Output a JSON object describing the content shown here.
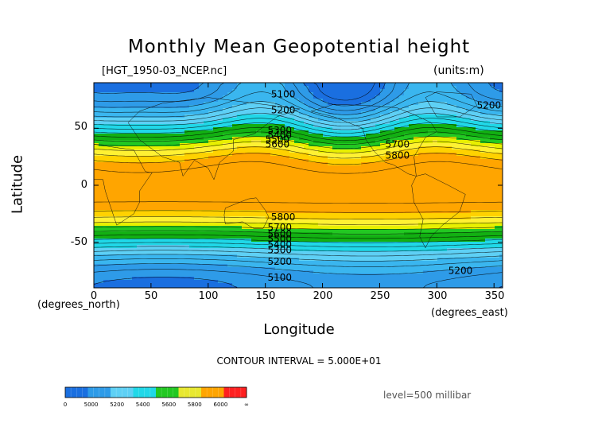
{
  "header": {
    "title": "Monthly Mean Geopotential height",
    "file_label": "[HGT_1950-03_NCEP.nc]",
    "units_label": "(units:m)"
  },
  "axes": {
    "xlabel": "Longitude",
    "ylabel": "Latitude",
    "x_units_left": "(degrees_north)",
    "x_units_right": "(degrees_east)",
    "x_ticks": [
      "0",
      "50",
      "100",
      "150",
      "200",
      "250",
      "300",
      "350"
    ],
    "y_ticks": [
      "50",
      "0",
      "-50"
    ]
  },
  "footer": {
    "contour_interval": "CONTOUR INTERVAL = 5.000E+01",
    "level": "level=500 millibar"
  },
  "colorbar": {
    "labels": [
      "0",
      "5000",
      "5200",
      "5400",
      "5600",
      "5800",
      "6000",
      "∞"
    ],
    "colors": [
      "#1a6fe0",
      "#2e9be8",
      "#5ed0f5",
      "#20d8e8",
      "#22c822",
      "#e8e830",
      "#ffa500",
      "#ff2020"
    ]
  },
  "chart_data": {
    "type": "heatmap",
    "title": "Monthly Mean Geopotential height",
    "xlabel": "Longitude",
    "ylabel": "Latitude",
    "xlim": [
      0,
      357.5
    ],
    "ylim": [
      -90,
      90
    ],
    "variable": "HGT",
    "level": "500 millibar",
    "units": "m",
    "contour_interval": 50,
    "colorbar_levels": [
      0,
      5000,
      5200,
      5400,
      5600,
      5800,
      6000
    ],
    "contour_labels": [
      {
        "value": 5100,
        "lon": 155,
        "lat": 80
      },
      {
        "value": 5200,
        "lon": 155,
        "lat": 66
      },
      {
        "value": 5200,
        "lon": 335,
        "lat": 70
      },
      {
        "value": 5300,
        "lon": 152,
        "lat": 48
      },
      {
        "value": 5400,
        "lon": 152,
        "lat": 44
      },
      {
        "value": 5500,
        "lon": 150,
        "lat": 40
      },
      {
        "value": 5600,
        "lon": 150,
        "lat": 36
      },
      {
        "value": 5700,
        "lon": 255,
        "lat": 36
      },
      {
        "value": 5800,
        "lon": 255,
        "lat": 26
      },
      {
        "value": 5800,
        "lon": 155,
        "lat": -28
      },
      {
        "value": 5700,
        "lon": 152,
        "lat": -37
      },
      {
        "value": 5600,
        "lon": 152,
        "lat": -43
      },
      {
        "value": 5500,
        "lon": 152,
        "lat": -47
      },
      {
        "value": 5400,
        "lon": 152,
        "lat": -52
      },
      {
        "value": 5300,
        "lon": 152,
        "lat": -57
      },
      {
        "value": 5200,
        "lon": 152,
        "lat": -67
      },
      {
        "value": 5200,
        "lon": 310,
        "lat": -75
      },
      {
        "value": 5100,
        "lon": 152,
        "lat": -81
      }
    ]
  }
}
